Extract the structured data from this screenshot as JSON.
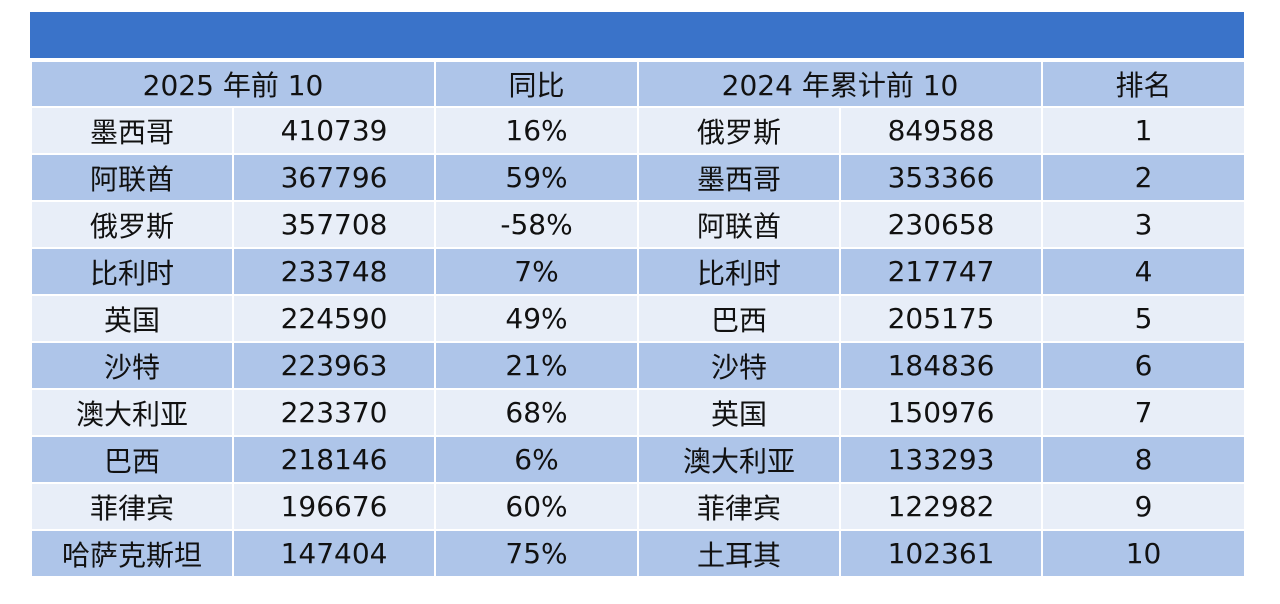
{
  "title": "",
  "headers": {
    "col_2025": "2025 年前 10",
    "col_yoy": "同比",
    "col_2024": "2024 年累计前 10",
    "col_rank": "排名"
  },
  "rows": [
    {
      "c2025": "墨西哥",
      "v2025": "410739",
      "yoy": "16%",
      "c2024": "俄罗斯",
      "v2024": "849588",
      "rank": "1"
    },
    {
      "c2025": "阿联酋",
      "v2025": "367796",
      "yoy": "59%",
      "c2024": "墨西哥",
      "v2024": "353366",
      "rank": "2"
    },
    {
      "c2025": "俄罗斯",
      "v2025": "357708",
      "yoy": "-58%",
      "c2024": "阿联酋",
      "v2024": "230658",
      "rank": "3"
    },
    {
      "c2025": "比利时",
      "v2025": "233748",
      "yoy": "7%",
      "c2024": "比利时",
      "v2024": "217747",
      "rank": "4"
    },
    {
      "c2025": "英国",
      "v2025": "224590",
      "yoy": "49%",
      "c2024": "巴西",
      "v2024": "205175",
      "rank": "5"
    },
    {
      "c2025": "沙特",
      "v2025": "223963",
      "yoy": "21%",
      "c2024": "沙特",
      "v2024": "184836",
      "rank": "6"
    },
    {
      "c2025": "澳大利亚",
      "v2025": "223370",
      "yoy": "68%",
      "c2024": "英国",
      "v2024": "150976",
      "rank": "7"
    },
    {
      "c2025": "巴西",
      "v2025": "218146",
      "yoy": "6%",
      "c2024": "澳大利亚",
      "v2024": "133293",
      "rank": "8"
    },
    {
      "c2025": "菲律宾",
      "v2025": "196676",
      "yoy": "60%",
      "c2024": "菲律宾",
      "v2024": "122982",
      "rank": "9"
    },
    {
      "c2025": "哈萨克斯坦",
      "v2025": "147404",
      "yoy": "75%",
      "c2024": "土耳其",
      "v2024": "102361",
      "rank": "10"
    }
  ],
  "colors": {
    "title_bar": "#3a73c9",
    "header_bg": "#aec5e9",
    "row_light": "#e8eef8",
    "row_dark": "#aec5e9"
  }
}
